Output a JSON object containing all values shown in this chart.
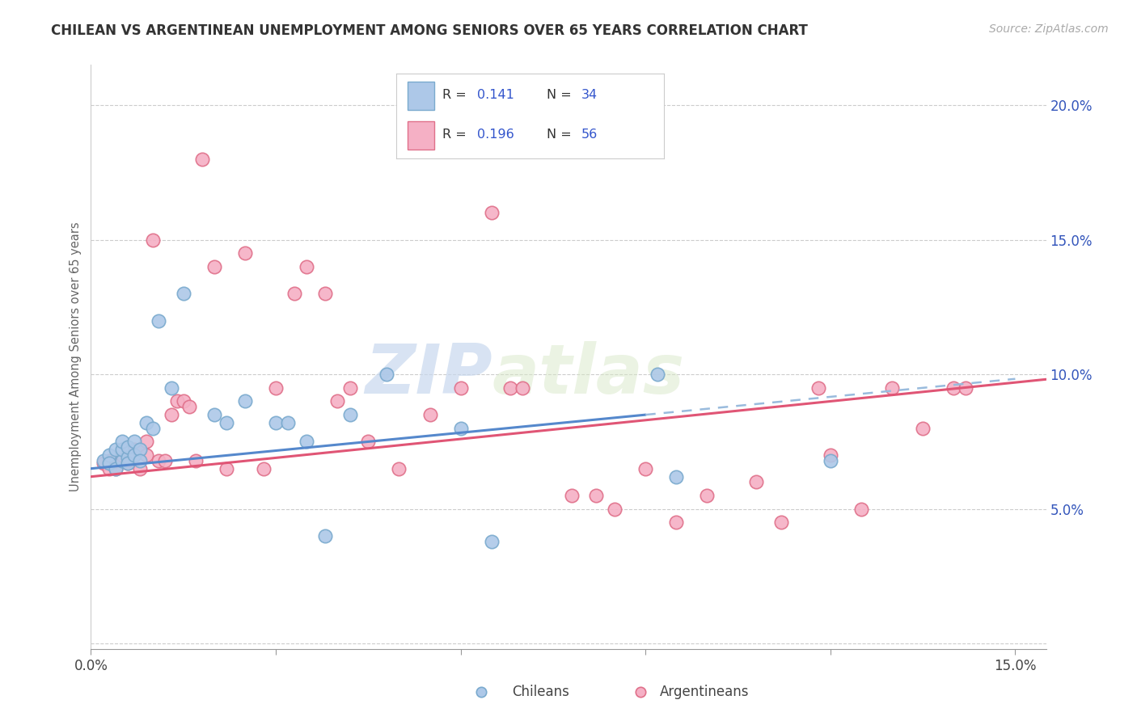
{
  "title": "CHILEAN VS ARGENTINEAN UNEMPLOYMENT AMONG SENIORS OVER 65 YEARS CORRELATION CHART",
  "source": "Source: ZipAtlas.com",
  "ylabel": "Unemployment Among Seniors over 65 years",
  "xlim": [
    0.0,
    0.155
  ],
  "ylim": [
    -0.002,
    0.215
  ],
  "xticks": [
    0.0,
    0.03,
    0.06,
    0.09,
    0.12,
    0.15
  ],
  "xtick_labels": [
    "0.0%",
    "",
    "",
    "",
    "",
    "15.0%"
  ],
  "yticks_right": [
    0.05,
    0.1,
    0.15,
    0.2
  ],
  "ytick_labels_right": [
    "5.0%",
    "10.0%",
    "15.0%",
    "20.0%"
  ],
  "legend_labels": [
    "Chileans",
    "Argentineans"
  ],
  "chilean_fill": "#adc8e8",
  "argentinean_fill": "#f5b0c5",
  "chilean_edge": "#7aaace",
  "argentinean_edge": "#e0708a",
  "chilean_line": "#5588cc",
  "argentinean_line": "#e05575",
  "dashed_line": "#99bbdd",
  "R_chilean": "0.141",
  "N_chilean": "34",
  "R_argentinean": "0.196",
  "N_argentinean": "56",
  "watermark_zip": "ZIP",
  "watermark_atlas": "atlas",
  "chilean_x": [
    0.002,
    0.003,
    0.003,
    0.004,
    0.004,
    0.005,
    0.005,
    0.005,
    0.006,
    0.006,
    0.006,
    0.007,
    0.007,
    0.008,
    0.008,
    0.009,
    0.01,
    0.011,
    0.013,
    0.015,
    0.02,
    0.022,
    0.025,
    0.03,
    0.032,
    0.035,
    0.038,
    0.042,
    0.048,
    0.06,
    0.065,
    0.092,
    0.095,
    0.12
  ],
  "chilean_y": [
    0.068,
    0.07,
    0.067,
    0.072,
    0.065,
    0.068,
    0.072,
    0.075,
    0.069,
    0.073,
    0.067,
    0.07,
    0.075,
    0.072,
    0.068,
    0.082,
    0.08,
    0.12,
    0.095,
    0.13,
    0.085,
    0.082,
    0.09,
    0.082,
    0.082,
    0.075,
    0.04,
    0.085,
    0.1,
    0.08,
    0.038,
    0.1,
    0.062,
    0.068
  ],
  "argentinean_x": [
    0.002,
    0.003,
    0.003,
    0.004,
    0.004,
    0.005,
    0.005,
    0.006,
    0.006,
    0.007,
    0.007,
    0.008,
    0.008,
    0.009,
    0.009,
    0.01,
    0.011,
    0.012,
    0.013,
    0.014,
    0.015,
    0.016,
    0.017,
    0.018,
    0.02,
    0.022,
    0.025,
    0.028,
    0.03,
    0.033,
    0.035,
    0.038,
    0.04,
    0.042,
    0.045,
    0.05,
    0.055,
    0.06,
    0.065,
    0.068,
    0.07,
    0.078,
    0.082,
    0.085,
    0.09,
    0.095,
    0.1,
    0.108,
    0.112,
    0.118,
    0.12,
    0.125,
    0.13,
    0.135,
    0.14,
    0.142
  ],
  "argentinean_y": [
    0.067,
    0.068,
    0.065,
    0.065,
    0.068,
    0.068,
    0.07,
    0.067,
    0.068,
    0.07,
    0.072,
    0.072,
    0.065,
    0.075,
    0.07,
    0.15,
    0.068,
    0.068,
    0.085,
    0.09,
    0.09,
    0.088,
    0.068,
    0.18,
    0.14,
    0.065,
    0.145,
    0.065,
    0.095,
    0.13,
    0.14,
    0.13,
    0.09,
    0.095,
    0.075,
    0.065,
    0.085,
    0.095,
    0.16,
    0.095,
    0.095,
    0.055,
    0.055,
    0.05,
    0.065,
    0.045,
    0.055,
    0.06,
    0.045,
    0.095,
    0.07,
    0.05,
    0.095,
    0.08,
    0.095,
    0.095
  ]
}
